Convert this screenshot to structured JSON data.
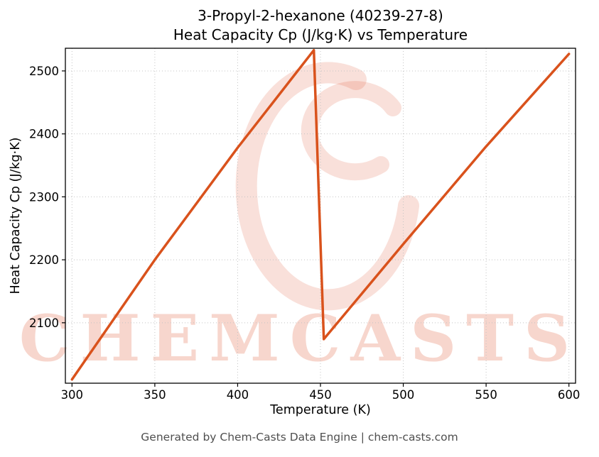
{
  "footer": {
    "text": "Generated by Chem-Casts Data Engine | chem-casts.com"
  },
  "watermark": {
    "text": "CHEMCASTS",
    "color": "rgba(221,82,48,0.24)"
  },
  "chart_data": {
    "type": "line",
    "title": "3-Propyl-2-hexanone (40239-27-8)",
    "subtitle": "Heat Capacity Cp (J/kg·K) vs Temperature",
    "xlabel": "Temperature (K)",
    "ylabel": "Heat Capacity Cp (J/kg·K)",
    "x_ticks": [
      300,
      350,
      400,
      450,
      500,
      550,
      600
    ],
    "y_ticks": [
      2100,
      2200,
      2300,
      2400,
      2500
    ],
    "xlim": [
      296,
      604
    ],
    "ylim": [
      2004,
      2536
    ],
    "grid": true,
    "legend": false,
    "line_color": "#d9521c",
    "line_width": 3.5,
    "series": [
      {
        "name": "Cp",
        "points": [
          [
            300,
            2010
          ],
          [
            350,
            2200
          ],
          [
            400,
            2378
          ],
          [
            446,
            2533
          ],
          [
            452,
            2074
          ],
          [
            500,
            2225
          ],
          [
            550,
            2380
          ],
          [
            600,
            2527
          ]
        ]
      }
    ]
  }
}
